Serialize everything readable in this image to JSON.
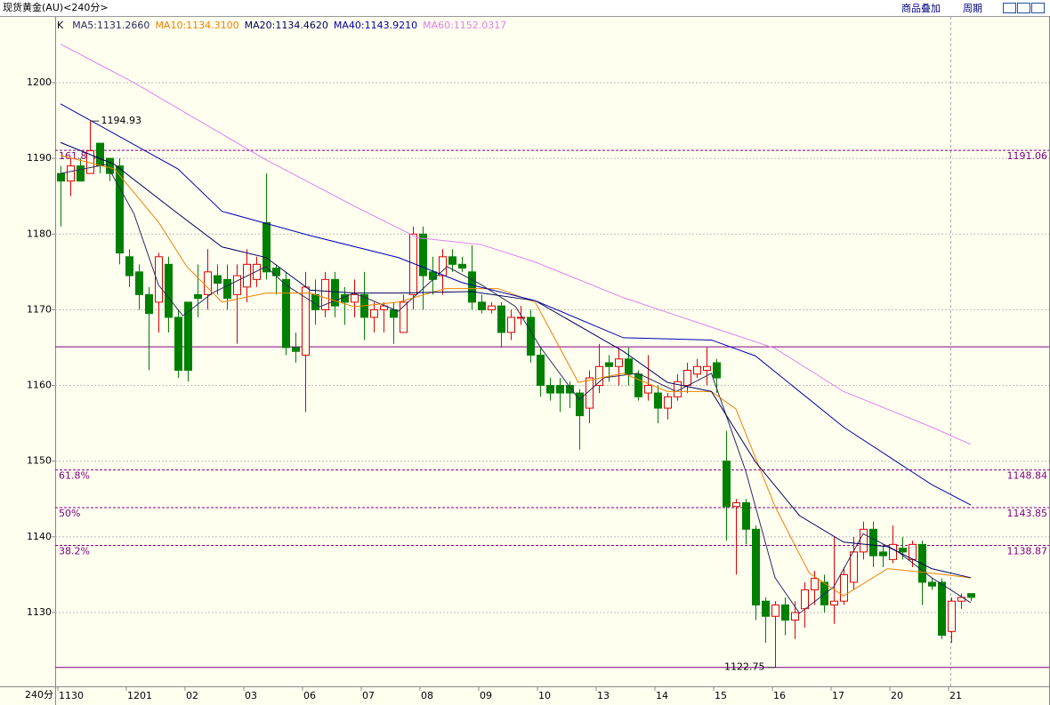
{
  "toolbar": {
    "title": "现货黄金(AU)<240分>",
    "buttons": [
      "商品叠加",
      "周期"
    ]
  },
  "chart_data": {
    "type": "candlestick",
    "k_label": "K",
    "x_unit_label": "240分",
    "categories": [
      "1130",
      null,
      null,
      null,
      null,
      null,
      null,
      "1201",
      null,
      null,
      null,
      null,
      null,
      "02",
      null,
      null,
      null,
      null,
      null,
      "03",
      null,
      null,
      null,
      null,
      null,
      "06",
      null,
      null,
      null,
      null,
      null,
      "07",
      null,
      null,
      null,
      null,
      null,
      "08",
      null,
      null,
      null,
      null,
      null,
      "09",
      null,
      null,
      null,
      null,
      null,
      "10",
      null,
      null,
      null,
      null,
      null,
      "13",
      null,
      null,
      null,
      null,
      null,
      "14",
      null,
      null,
      null,
      null,
      null,
      "15",
      null,
      null,
      null,
      null,
      null,
      "16",
      null,
      null,
      null,
      null,
      null,
      "17",
      null,
      null,
      null,
      null,
      null,
      "20",
      null,
      null,
      null,
      null,
      null,
      "21",
      null,
      null
    ],
    "open": [
      1188,
      1187,
      1189,
      1188,
      1192,
      1190,
      1189,
      1177,
      1175,
      1172,
      1171,
      1176,
      1169,
      1171,
      1172,
      1172,
      1174.5,
      1174,
      1172,
      1173,
      1174,
      1181.5,
      1175.5,
      1174,
      1165,
      1164,
      1172,
      1170,
      1174,
      1172,
      1171,
      1172,
      1169,
      1170,
      1170,
      1167,
      1172,
      1180,
      1175,
      1174.5,
      1177,
      1176,
      1175,
      1171,
      1170,
      1170.5,
      1167,
      1169,
      1169,
      1164,
      1160,
      1160,
      1160,
      1159,
      1157,
      1160,
      1163,
      1162.5,
      1163.5,
      1161.5,
      1159,
      1159,
      1157,
      1158.5,
      1160,
      1161.5,
      1162,
      1163,
      1150,
      1144,
      1144.5,
      1141,
      1131.5,
      1129.5,
      1131,
      1129,
      1130.5,
      1133,
      1134,
      1131,
      1131.5,
      1134,
      1138,
      1141,
      1138,
      1137,
      1138.5,
      1137,
      1139,
      1134,
      1134,
      1127.5,
      1131.5,
      1132.5
    ],
    "high": [
      1189,
      1190,
      1190,
      1194.93,
      1192,
      1190,
      1190,
      1178,
      1176,
      1173,
      1177.5,
      1177,
      1170,
      1171,
      1176,
      1178,
      1176,
      1176,
      1176,
      1178,
      1177,
      1188,
      1176,
      1175,
      1167,
      1175,
      1174,
      1175,
      1175,
      1173,
      1174,
      1175,
      1171,
      1171,
      1171,
      1172,
      1181,
      1181,
      1177,
      1178,
      1178,
      1177,
      1178.5,
      1172,
      1171,
      1171,
      1170,
      1170.5,
      1170,
      1165,
      1161,
      1161,
      1160.5,
      1159.5,
      1162,
      1165.5,
      1164,
      1165,
      1165,
      1162,
      1164,
      1160,
      1159,
      1161.5,
      1163,
      1163.5,
      1165,
      1163.5,
      1154,
      1145,
      1145,
      1141.5,
      1132,
      1131.5,
      1132,
      1131.5,
      1134,
      1135.5,
      1135,
      1140,
      1136,
      1140,
      1142,
      1142,
      1139,
      1141.5,
      1140,
      1139.5,
      1139.5,
      1134.5,
      1134.5,
      1132,
      1132.5,
      1132.5
    ],
    "low": [
      1181,
      1185,
      1187,
      1188,
      1188,
      1187,
      1176,
      1173,
      1170,
      1162,
      1167,
      1167,
      1161,
      1160.5,
      1169,
      1170,
      1172,
      1170,
      1165.5,
      1171,
      1173,
      1174,
      1172,
      1164,
      1163,
      1156.5,
      1168,
      1169,
      1169,
      1168,
      1169,
      1166,
      1167,
      1167,
      1165.5,
      1167,
      1170,
      1170,
      1172,
      1172,
      1175,
      1175,
      1170,
      1169.5,
      1169.5,
      1165,
      1166,
      1168,
      1163,
      1158.5,
      1158,
      1156.5,
      1157,
      1151.5,
      1155,
      1159,
      1160.5,
      1160,
      1160,
      1158,
      1158,
      1155,
      1155.5,
      1158,
      1159,
      1161,
      1160,
      1159,
      1139.5,
      1135,
      1139,
      1129,
      1126,
      1122.75,
      1127,
      1126.5,
      1128,
      1131,
      1130,
      1128.5,
      1131,
      1133,
      1137,
      1136,
      1136,
      1136.5,
      1137,
      1136,
      1131,
      1133,
      1126.5,
      1126,
      1130.5,
      1131.5
    ],
    "close": [
      1187,
      1189,
      1187,
      1191,
      1189,
      1188,
      1177.5,
      1174.5,
      1172,
      1169.5,
      1177,
      1169,
      1162,
      1162,
      1171.5,
      1175,
      1173.5,
      1171.5,
      1174.5,
      1176,
      1176,
      1175,
      1174.5,
      1165,
      1164.5,
      1173,
      1170,
      1174,
      1170.5,
      1171,
      1172,
      1169,
      1170,
      1170.5,
      1169,
      1171,
      1180,
      1174.5,
      1174,
      1177,
      1176,
      1175.5,
      1171,
      1170,
      1170.5,
      1167,
      1169,
      1169,
      1164,
      1160,
      1159,
      1159,
      1159,
      1156,
      1161,
      1162.5,
      1162.5,
      1163.5,
      1161.5,
      1158.5,
      1160,
      1157,
      1158.5,
      1160.5,
      1162,
      1162.5,
      1162.5,
      1161,
      1144,
      1144.5,
      1141,
      1131,
      1129.5,
      1131,
      1129,
      1130,
      1133,
      1134.5,
      1131,
      1131.5,
      1135,
      1138,
      1141,
      1137.5,
      1137.5,
      1139,
      1138,
      1139,
      1134,
      1133.5,
      1127,
      1131.5,
      1132,
      1132
    ],
    "up_color": "#e00000",
    "down_color": "#008000",
    "series": [
      {
        "label": "MA5:1131.2660",
        "color": "#2a2a60",
        "x": [
          0,
          4.7,
          7.5,
          10,
          12.5,
          15.5,
          21,
          23,
          26.5,
          30,
          34.5,
          39.5,
          43,
          46.5,
          49,
          53,
          55.5,
          59,
          62.9,
          66.5,
          70,
          73,
          75.5,
          79,
          82,
          85.5,
          89,
          93
        ],
        "values": [
          1188.0,
          1189.2,
          1182.7,
          1173.3,
          1169.2,
          1172.2,
          1175.7,
          1173.3,
          1170.4,
          1172.2,
          1169.8,
          1175.7,
          1173.3,
          1170.4,
          1165.1,
          1158.1,
          1161.0,
          1161.6,
          1159.2,
          1161.6,
          1148.7,
          1134.6,
          1129.9,
          1133.4,
          1140.4,
          1138.1,
          1134.6,
          1131.3
        ]
      },
      {
        "label": "MA10:1134.3100",
        "color": "#f08000",
        "x": [
          0,
          5.5,
          10,
          12.9,
          16.5,
          21,
          25.5,
          30,
          34.5,
          39.3,
          44.7,
          48.5,
          52.9,
          57.5,
          62,
          66.5,
          69,
          73,
          76.5,
          80,
          84.5,
          89,
          93
        ],
        "values": [
          1190.4,
          1188.6,
          1181.6,
          1175.7,
          1171.0,
          1172.2,
          1172.2,
          1170.4,
          1171.0,
          1172.8,
          1172.8,
          1171.0,
          1160.4,
          1161.6,
          1159.2,
          1159.2,
          1156.9,
          1144.0,
          1135.2,
          1132.2,
          1135.8,
          1135.2,
          1134.6
        ]
      },
      {
        "label": "MA20:1134.4620",
        "color": "#000060",
        "x": [
          0,
          5.5,
          12,
          16.5,
          21,
          25.5,
          30,
          34.5,
          42,
          48.5,
          57.5,
          62,
          66.5,
          71,
          75.5,
          80,
          84.5,
          89,
          93
        ],
        "values": [
          1192.1,
          1189.2,
          1182.7,
          1178.3,
          1176.9,
          1172.6,
          1172.2,
          1172.2,
          1172.4,
          1171.2,
          1164.5,
          1160.4,
          1159.2,
          1149.9,
          1142.8,
          1139.3,
          1138.7,
          1135.8,
          1134.6
        ]
      },
      {
        "label": "MA40:1143.9210",
        "color": "#0000b0",
        "x": [
          0,
          12,
          16.5,
          25.5,
          34.5,
          41,
          48.5,
          57.5,
          66.5,
          71,
          80,
          89,
          93
        ],
        "values": [
          1197.2,
          1188.6,
          1183.0,
          1179.8,
          1176.9,
          1173.6,
          1171.2,
          1166.3,
          1166.0,
          1163.9,
          1154.5,
          1146.9,
          1144.2
        ]
      },
      {
        "label": "MA60:1152.0317",
        "color": "#e080e8",
        "x": [
          0,
          7.5,
          21,
          30,
          36.5,
          43,
          48.5,
          57.5,
          66.5,
          73,
          80,
          89,
          93
        ],
        "values": [
          1205.1,
          1200.0,
          1189.8,
          1183.7,
          1179.5,
          1178.6,
          1176.3,
          1171.6,
          1167.7,
          1164.9,
          1159.2,
          1154.5,
          1152.2
        ]
      }
    ],
    "levels": [
      {
        "value": 1191.06,
        "label": "161.8%",
        "style": "dashed"
      },
      {
        "value": 1148.84,
        "label": "61.8%",
        "style": "dashed"
      },
      {
        "value": 1143.85,
        "label": "50%",
        "style": "dashed"
      },
      {
        "value": 1138.87,
        "label": "38.2%",
        "style": "dashed"
      },
      {
        "value": 1165.1,
        "style": "solid"
      },
      {
        "value": 1122.75,
        "style": "solid"
      }
    ],
    "level_color": "#800080",
    "annotations": [
      {
        "index": 3,
        "value": 1194.93,
        "side": "right"
      },
      {
        "index": 73,
        "value": 1122.75,
        "side": "left"
      }
    ],
    "ylim": [
      1120.25,
      1208.57
    ],
    "yticks": [
      1130,
      1140,
      1150,
      1160,
      1170,
      1180,
      1190,
      1200
    ],
    "grid": true
  }
}
